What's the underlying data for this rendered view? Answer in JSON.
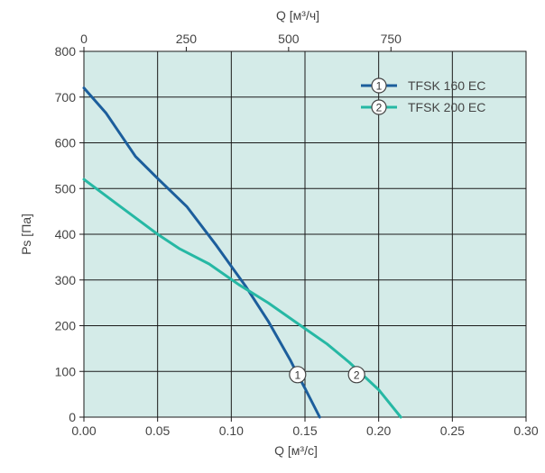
{
  "chart_data": {
    "type": "line",
    "title": "",
    "xlabel": "Q [м³/с]",
    "x2label": "Q [м³/ч]",
    "ylabel": "Ps [Па]",
    "xlim": [
      0,
      0.3
    ],
    "ylim": [
      0,
      800
    ],
    "x2lim": [
      0,
      1080
    ],
    "x_ticks": [
      "0.00",
      "0.05",
      "0.10",
      "0.15",
      "0.20",
      "0.25",
      "0.30"
    ],
    "x_tick_values": [
      0,
      0.05,
      0.1,
      0.15,
      0.2,
      0.25,
      0.3
    ],
    "x2_ticks": [
      "0",
      "250",
      "500",
      "750"
    ],
    "x2_tick_values": [
      0,
      250,
      500,
      750
    ],
    "y_ticks": [
      "0",
      "100",
      "200",
      "300",
      "400",
      "500",
      "600",
      "700",
      "800"
    ],
    "y_tick_values": [
      0,
      100,
      200,
      300,
      400,
      500,
      600,
      700,
      800
    ],
    "grid": true,
    "legend_position": "top-right",
    "background_color": "#d4ebe8",
    "series": [
      {
        "name": "TFSK 160 EC",
        "marker": "1",
        "color": "#1c5e9c",
        "points": [
          [
            0.0,
            720
          ],
          [
            0.015,
            665
          ],
          [
            0.035,
            570
          ],
          [
            0.05,
            522
          ],
          [
            0.07,
            460
          ],
          [
            0.09,
            375
          ],
          [
            0.11,
            285
          ],
          [
            0.125,
            210
          ],
          [
            0.14,
            125
          ],
          [
            0.145,
            93
          ],
          [
            0.15,
            63
          ],
          [
            0.16,
            0
          ]
        ]
      },
      {
        "name": "TFSK 200 EC",
        "marker": "2",
        "color": "#26b8a4",
        "points": [
          [
            0.0,
            520
          ],
          [
            0.025,
            460
          ],
          [
            0.05,
            400
          ],
          [
            0.065,
            368
          ],
          [
            0.085,
            335
          ],
          [
            0.105,
            290
          ],
          [
            0.125,
            250
          ],
          [
            0.145,
            205
          ],
          [
            0.165,
            160
          ],
          [
            0.18,
            120
          ],
          [
            0.2,
            60
          ],
          [
            0.215,
            0
          ]
        ]
      }
    ],
    "markers": [
      {
        "label": "1",
        "series": 0,
        "x": 0.145,
        "y": 93
      },
      {
        "label": "2",
        "series": 1,
        "x": 0.185,
        "y": 93
      }
    ]
  }
}
